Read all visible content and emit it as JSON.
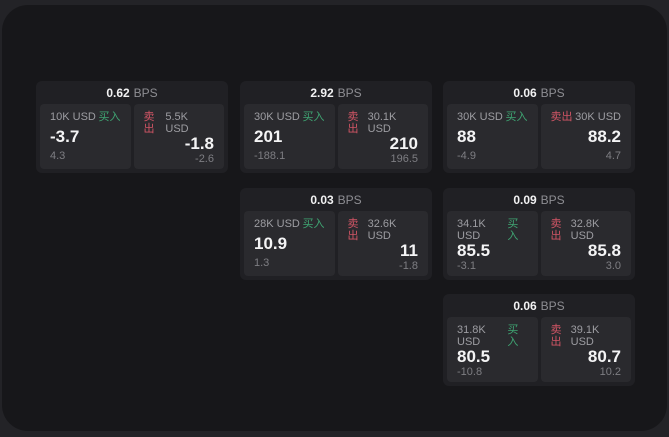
{
  "labels": {
    "buy": "买入",
    "sell": "卖出",
    "bps_unit": "BPS"
  },
  "colors": {
    "buy_green": "#3fa573",
    "sell_red": "#d15565",
    "window_bg": "#17171a",
    "card_bg": "#202024",
    "panel_bg": "#2a2a2e"
  },
  "cards": [
    {
      "bps": "0.62",
      "buy": {
        "amount": "10K USD",
        "price": "-3.7",
        "delta": "4.3"
      },
      "sell": {
        "amount": "5.5K USD",
        "price": "-1.8",
        "delta": "-2.6"
      }
    },
    {
      "bps": "2.92",
      "buy": {
        "amount": "30K USD",
        "price": "201",
        "delta": "-188.1"
      },
      "sell": {
        "amount": "30.1K USD",
        "price": "210",
        "delta": "196.5"
      }
    },
    {
      "bps": "0.06",
      "buy": {
        "amount": "30K USD",
        "price": "88",
        "delta": "-4.9"
      },
      "sell": {
        "amount": "30K USD",
        "price": "88.2",
        "delta": "4.7"
      }
    },
    {
      "bps": "0.03",
      "buy": {
        "amount": "28K USD",
        "price": "10.9",
        "delta": "1.3"
      },
      "sell": {
        "amount": "32.6K USD",
        "price": "11",
        "delta": "-1.8"
      }
    },
    {
      "bps": "0.09",
      "buy": {
        "amount": "34.1K USD",
        "price": "85.5",
        "delta": "-3.1"
      },
      "sell": {
        "amount": "32.8K USD",
        "price": "85.8",
        "delta": "3.0"
      }
    },
    {
      "bps": "0.06",
      "buy": {
        "amount": "31.8K USD",
        "price": "80.5",
        "delta": "-10.8"
      },
      "sell": {
        "amount": "39.1K USD",
        "price": "80.7",
        "delta": "10.2"
      }
    }
  ]
}
